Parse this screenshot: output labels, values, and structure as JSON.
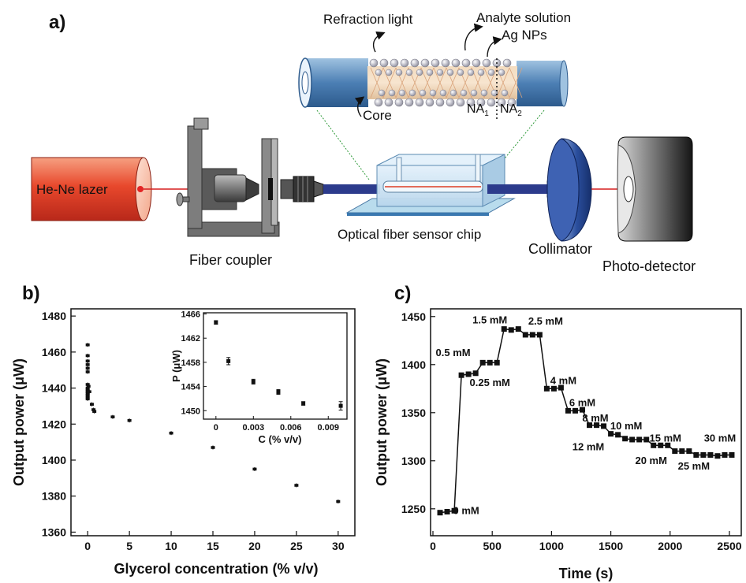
{
  "panels": {
    "a": "a)",
    "b": "b)",
    "c": "c)"
  },
  "setup": {
    "laser_label": "He-Ne lazer",
    "fiber_coupler_label": "Fiber coupler",
    "sensor_chip_label": "Optical fiber sensor chip",
    "collimator_label": "Collimator",
    "photodetector_label": "Photo-detector",
    "zoom": {
      "refraction_light": "Refraction light",
      "analyte_solution": "Analyte solution",
      "ag_nps": "Ag NPs",
      "core": "Core",
      "na1": "NA",
      "na1_sub": "1",
      "na2": "NA",
      "na2_sub": "2"
    }
  },
  "chart_data": [
    {
      "id": "b-main",
      "type": "scatter",
      "xlabel": "Glycerol concentration (% v/v)",
      "ylabel": "Output power (μW)",
      "xlim": [
        -2,
        32
      ],
      "ylim": [
        1358,
        1484
      ],
      "xticks": [
        0,
        5,
        10,
        15,
        20,
        25,
        30
      ],
      "yticks": [
        1360,
        1380,
        1400,
        1420,
        1440,
        1460,
        1480
      ],
      "grid": false,
      "x": [
        0,
        0,
        0,
        0,
        0,
        0,
        0,
        0,
        0,
        0,
        0,
        0,
        0,
        0,
        0.1,
        0.2,
        0.5,
        0.7,
        0.8,
        3,
        5,
        10,
        15,
        20,
        25,
        30
      ],
      "y": [
        1464,
        1458,
        1455,
        1453,
        1451,
        1449,
        1442,
        1440,
        1439,
        1438,
        1437,
        1436,
        1435,
        1434,
        1441,
        1438,
        1431,
        1428,
        1427,
        1424,
        1422,
        1415,
        1407,
        1395,
        1386,
        1377
      ]
    },
    {
      "id": "b-inset",
      "type": "scatter",
      "xlabel": "C (% v/v)",
      "ylabel": "P (μW)",
      "xlim": [
        -0.001,
        0.0105
      ],
      "ylim": [
        1448.6,
        1466.2
      ],
      "xticks": [
        "0",
        "0.003",
        "0.006",
        "0.009"
      ],
      "xtick_values": [
        0,
        0.003,
        0.006,
        0.009
      ],
      "yticks": [
        "1450",
        "1454",
        "1458",
        "1462",
        "1466"
      ],
      "ytick_values": [
        1450,
        1454,
        1458,
        1462,
        1466
      ],
      "grid": false,
      "x": [
        0,
        0.001,
        0.003,
        0.005,
        0.007,
        0.01
      ],
      "y": [
        1464.6,
        1458.2,
        1454.8,
        1453.1,
        1451.2,
        1450.8
      ],
      "err": [
        0.3,
        0.6,
        0.4,
        0.4,
        0.3,
        0.7
      ]
    },
    {
      "id": "c-main",
      "type": "line",
      "xlabel": "Time (s)",
      "ylabel": "Output power (μW)",
      "xlim": [
        -20,
        2600
      ],
      "ylim": [
        1222,
        1458
      ],
      "xticks": [
        0,
        500,
        1000,
        1500,
        2000,
        2500
      ],
      "yticks": [
        1250,
        1300,
        1350,
        1400,
        1450
      ],
      "grid": false,
      "x": [
        60,
        120,
        180,
        240,
        300,
        360,
        420,
        480,
        540,
        600,
        660,
        720,
        780,
        840,
        900,
        960,
        1020,
        1080,
        1140,
        1200,
        1260,
        1320,
        1380,
        1440,
        1500,
        1560,
        1620,
        1680,
        1740,
        1800,
        1860,
        1920,
        1980,
        2040,
        2100,
        2160,
        2220,
        2280,
        2340,
        2400,
        2460,
        2520
      ],
      "y": [
        1246,
        1247,
        1248,
        1389,
        1390,
        1391,
        1402,
        1402,
        1402,
        1437,
        1436,
        1437,
        1431,
        1431,
        1431,
        1375,
        1375,
        1376,
        1352,
        1352,
        1353,
        1337,
        1337,
        1336,
        1328,
        1327,
        1323,
        1322,
        1322,
        1322,
        1316,
        1316,
        1316,
        1310,
        1310,
        1310,
        1306,
        1306,
        1306,
        1305,
        1306,
        1306
      ],
      "annotations": [
        {
          "text": "0 mM",
          "x": 280,
          "y": 1248
        },
        {
          "text": "0.25 mM",
          "x": 480,
          "y": 1381
        },
        {
          "text": "0.5 mM",
          "x": 170,
          "y": 1412
        },
        {
          "text": "1.5 mM",
          "x": 480,
          "y": 1446
        },
        {
          "text": "2.5 mM",
          "x": 950,
          "y": 1445
        },
        {
          "text": "4 mM",
          "x": 1100,
          "y": 1383
        },
        {
          "text": "6 mM",
          "x": 1260,
          "y": 1360
        },
        {
          "text": "8 mM",
          "x": 1370,
          "y": 1344
        },
        {
          "text": "10 mM",
          "x": 1630,
          "y": 1336
        },
        {
          "text": "12 mM",
          "x": 1310,
          "y": 1314
        },
        {
          "text": "15 mM",
          "x": 1960,
          "y": 1323
        },
        {
          "text": "20 mM",
          "x": 1840,
          "y": 1300
        },
        {
          "text": "25 mM",
          "x": 2200,
          "y": 1294
        },
        {
          "text": "30 mM",
          "x": 2420,
          "y": 1323
        }
      ]
    }
  ]
}
